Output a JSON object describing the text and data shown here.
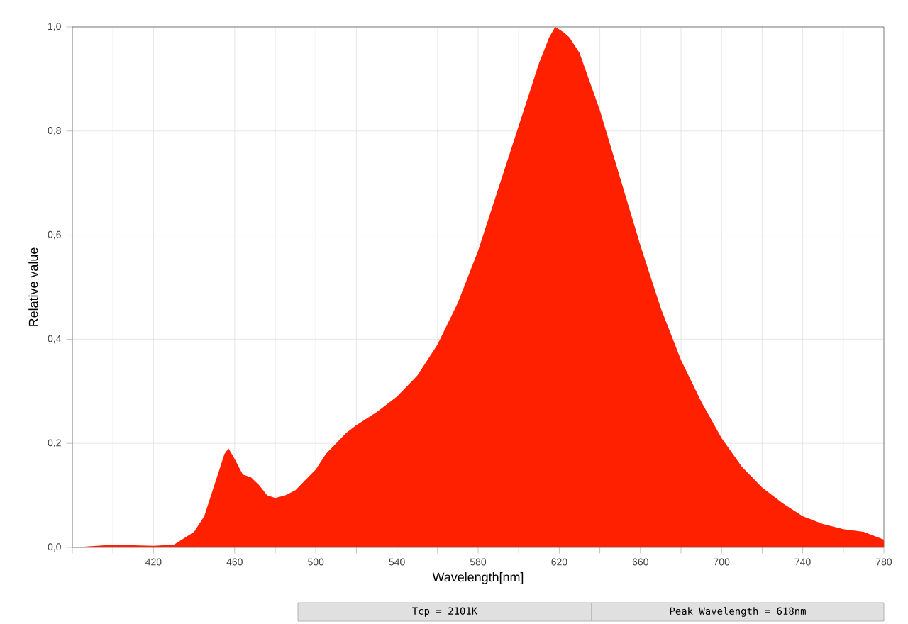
{
  "chart_data": {
    "type": "area",
    "xlabel": "Wavelength[nm]",
    "ylabel": "Relative value",
    "annotations": [
      "Tcp = 2101K",
      "Peak Wavelength = 618nm"
    ],
    "x": [
      380,
      400,
      420,
      430,
      440,
      445,
      450,
      455,
      457,
      460,
      464,
      468,
      472,
      476,
      480,
      485,
      490,
      495,
      500,
      505,
      510,
      515,
      520,
      530,
      540,
      550,
      560,
      570,
      580,
      590,
      600,
      605,
      610,
      615,
      618,
      622,
      625,
      630,
      640,
      650,
      660,
      670,
      680,
      690,
      700,
      710,
      720,
      730,
      740,
      750,
      760,
      770,
      780
    ],
    "values": [
      0,
      0.005,
      0.003,
      0.005,
      0.03,
      0.06,
      0.12,
      0.18,
      0.19,
      0.17,
      0.14,
      0.135,
      0.12,
      0.1,
      0.095,
      0.1,
      0.11,
      0.13,
      0.15,
      0.18,
      0.2,
      0.22,
      0.235,
      0.26,
      0.29,
      0.33,
      0.39,
      0.47,
      0.57,
      0.69,
      0.81,
      0.87,
      0.93,
      0.98,
      1.0,
      0.99,
      0.98,
      0.95,
      0.84,
      0.71,
      0.58,
      0.46,
      0.36,
      0.28,
      0.21,
      0.155,
      0.115,
      0.085,
      0.06,
      0.045,
      0.035,
      0.03,
      0.015
    ],
    "color": "#ff2000",
    "xlim": [
      380,
      780
    ],
    "ylim": [
      0,
      1
    ],
    "xticks": [
      {
        "value": 380,
        "label": null
      },
      {
        "value": 400,
        "label": null
      },
      420,
      {
        "value": 440,
        "label": null
      },
      460,
      {
        "value": 480,
        "label": null
      },
      500,
      {
        "value": 520,
        "label": null
      },
      540,
      {
        "value": 560,
        "label": null
      },
      580,
      {
        "value": 600,
        "label": null
      },
      620,
      {
        "value": 640,
        "label": null
      },
      660,
      {
        "value": 680,
        "label": null
      },
      700,
      {
        "value": 720,
        "label": null
      },
      740,
      {
        "value": 760,
        "label": null
      },
      780
    ],
    "yticks": [
      {
        "value": 0,
        "label": "0,0"
      },
      {
        "value": 0.2,
        "label": "0,2"
      },
      {
        "value": 0.4,
        "label": "0,4"
      },
      {
        "value": 0.6,
        "label": "0,6"
      },
      {
        "value": 0.8,
        "label": "0,8"
      },
      {
        "value": 1,
        "label": "1,0"
      }
    ],
    "grid": true
  }
}
